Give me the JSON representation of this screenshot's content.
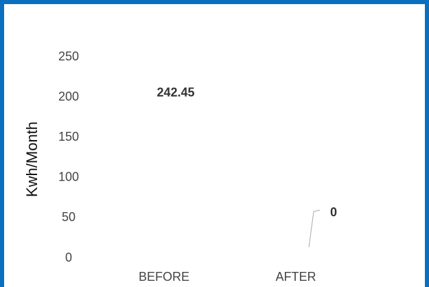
{
  "chart_data": {
    "type": "bar",
    "y_label": "Kwh/Month",
    "categories": [
      "BEFORE",
      "AFTER"
    ],
    "values": [
      242.45,
      0
    ],
    "ylim": [
      0,
      250
    ],
    "yticks": [
      0,
      50,
      100,
      150,
      200,
      250
    ]
  }
}
